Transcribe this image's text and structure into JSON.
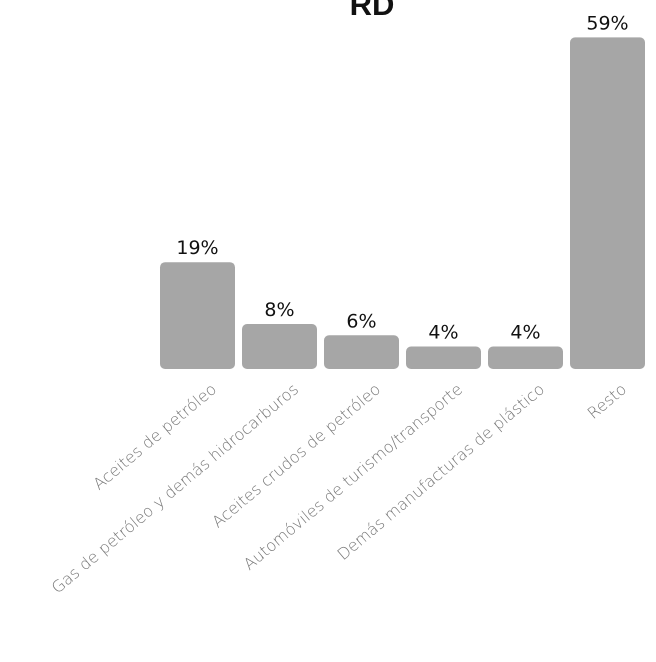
{
  "chart_data": {
    "type": "bar",
    "title": "RD",
    "categories": [
      "Aceites de petróleo",
      "Gas de petróleo y demás hidrocarburos",
      "Aceites crudos de petróleo",
      "Automóviles de turismo/transporte",
      "Demás manufacturas de plástico",
      "Resto"
    ],
    "values": [
      19,
      8,
      6,
      4,
      4,
      59
    ],
    "value_labels": [
      "19%",
      "8%",
      "6%",
      "4%",
      "4%",
      "59%"
    ],
    "unit": "%",
    "ylim": [
      0,
      60
    ],
    "grid": false,
    "legend": "none",
    "bar_color": "#a6a6a6"
  }
}
